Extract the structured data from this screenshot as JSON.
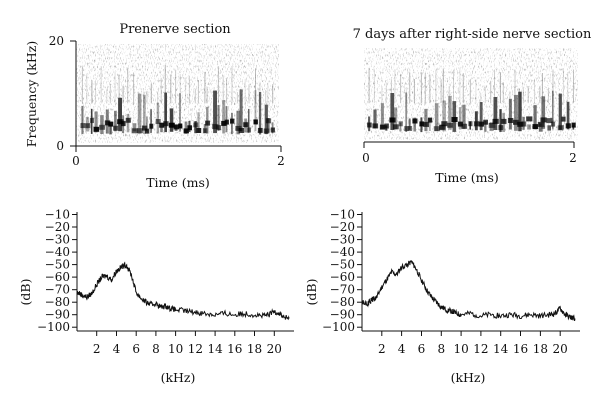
{
  "chart_data": [
    {
      "type": "spectrogram",
      "title": "Prenerve section",
      "xlabel": "Time (ms)",
      "ylabel": "Frequency (kHz)",
      "xlim": [
        0,
        2
      ],
      "ylim": [
        0,
        20
      ],
      "x_ticks": [
        "0",
        "2"
      ],
      "y_ticks": [
        "0",
        "20"
      ],
      "dense_energy_band_khz": [
        2,
        8
      ]
    },
    {
      "type": "spectrogram",
      "title": "7 days after right-side nerve section",
      "xlabel": "Time (ms)",
      "ylabel": "",
      "xlim": [
        0,
        2
      ],
      "ylim": [
        0,
        20
      ],
      "x_ticks": [
        "0",
        "2"
      ],
      "y_ticks": [],
      "dense_energy_band_khz": [
        2,
        8
      ]
    },
    {
      "type": "line",
      "title": "",
      "xlabel": "(kHz)",
      "ylabel": "(dB)",
      "xlim": [
        0,
        22
      ],
      "ylim": [
        -103,
        -8
      ],
      "x_ticks": [
        "2",
        "4",
        "6",
        "8",
        "10",
        "12",
        "14",
        "16",
        "18",
        "20"
      ],
      "y_ticks": [
        "−10",
        "−20",
        "−30",
        "−40",
        "−50",
        "−60",
        "−70",
        "−80",
        "−90",
        "−100"
      ],
      "series": [
        {
          "name": "spectrum",
          "x": [
            0,
            0.5,
            1,
            1.5,
            2,
            2.5,
            3,
            3.5,
            4,
            4.5,
            5,
            5.5,
            6,
            6.5,
            7,
            7.5,
            8,
            8.5,
            9,
            9.5,
            10,
            11,
            12,
            13,
            14,
            15,
            16,
            17,
            18,
            19,
            19.5,
            20,
            20.5,
            21,
            21.5
          ],
          "y": [
            -72,
            -74,
            -76,
            -73,
            -66,
            -60,
            -59,
            -62,
            -55,
            -52,
            -50,
            -58,
            -72,
            -77,
            -80,
            -82,
            -81,
            -84,
            -83,
            -85,
            -86,
            -87,
            -88,
            -89,
            -90,
            -89,
            -90,
            -89,
            -90,
            -91,
            -90,
            -87,
            -89,
            -92,
            -93
          ]
        }
      ]
    },
    {
      "type": "line",
      "title": "",
      "xlabel": "(kHz)",
      "ylabel": "(dB)",
      "xlim": [
        0,
        22
      ],
      "ylim": [
        -103,
        -8
      ],
      "x_ticks": [
        "2",
        "4",
        "6",
        "8",
        "10",
        "12",
        "14",
        "16",
        "18",
        "20"
      ],
      "y_ticks": [
        "−10",
        "−20",
        "−30",
        "−40",
        "−50",
        "−60",
        "−70",
        "−80",
        "−90",
        "−100"
      ],
      "series": [
        {
          "name": "spectrum",
          "x": [
            0,
            0.5,
            1,
            1.5,
            2,
            2.5,
            3,
            3.5,
            4,
            4.5,
            5,
            5.5,
            6,
            6.5,
            7,
            7.5,
            8,
            8.5,
            9,
            9.5,
            10,
            11,
            12,
            13,
            14,
            15,
            16,
            17,
            18,
            19,
            19.5,
            20,
            20.5,
            21,
            21.5
          ],
          "y": [
            -80,
            -82,
            -78,
            -76,
            -68,
            -62,
            -56,
            -58,
            -52,
            -50,
            -48,
            -54,
            -62,
            -70,
            -76,
            -80,
            -84,
            -86,
            -87,
            -89,
            -90,
            -89,
            -91,
            -90,
            -91,
            -90,
            -91,
            -90,
            -91,
            -90,
            -89,
            -85,
            -90,
            -92,
            -93
          ]
        }
      ]
    }
  ]
}
